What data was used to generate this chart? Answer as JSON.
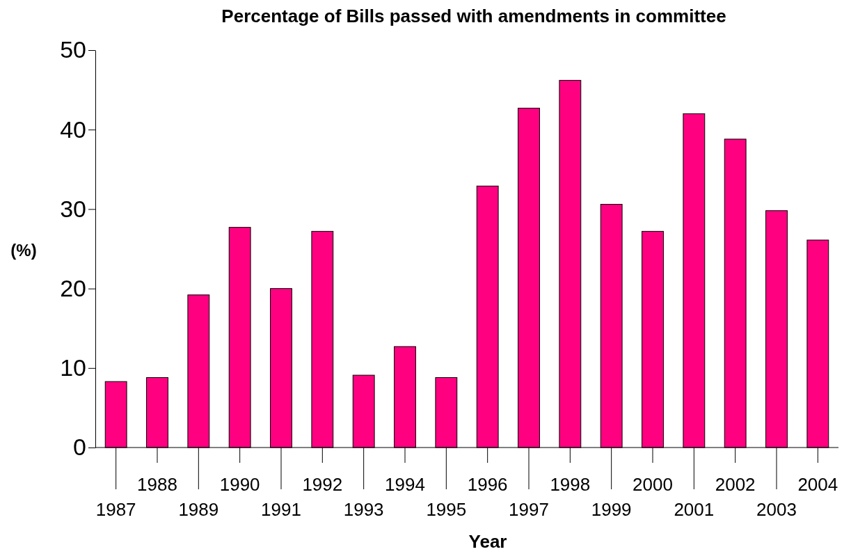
{
  "chart_data": {
    "type": "bar",
    "title": "Percentage of Bills passed with amendments in committee",
    "xlabel": "Year",
    "ylabel": "(%)",
    "categories": [
      "1987",
      "1988",
      "1989",
      "1990",
      "1991",
      "1992",
      "1993",
      "1994",
      "1995",
      "1996",
      "1997",
      "1998",
      "1999",
      "2000",
      "2001",
      "2002",
      "2003",
      "2004"
    ],
    "values": [
      8.3,
      8.8,
      19.2,
      27.7,
      20.0,
      27.2,
      9.1,
      12.7,
      8.8,
      32.9,
      42.7,
      46.2,
      30.6,
      27.2,
      42.0,
      38.8,
      29.8,
      26.1
    ],
    "color": "#ff0080",
    "ylim": [
      0,
      50
    ],
    "yticks": [
      0,
      10,
      20,
      30,
      40,
      50
    ]
  }
}
